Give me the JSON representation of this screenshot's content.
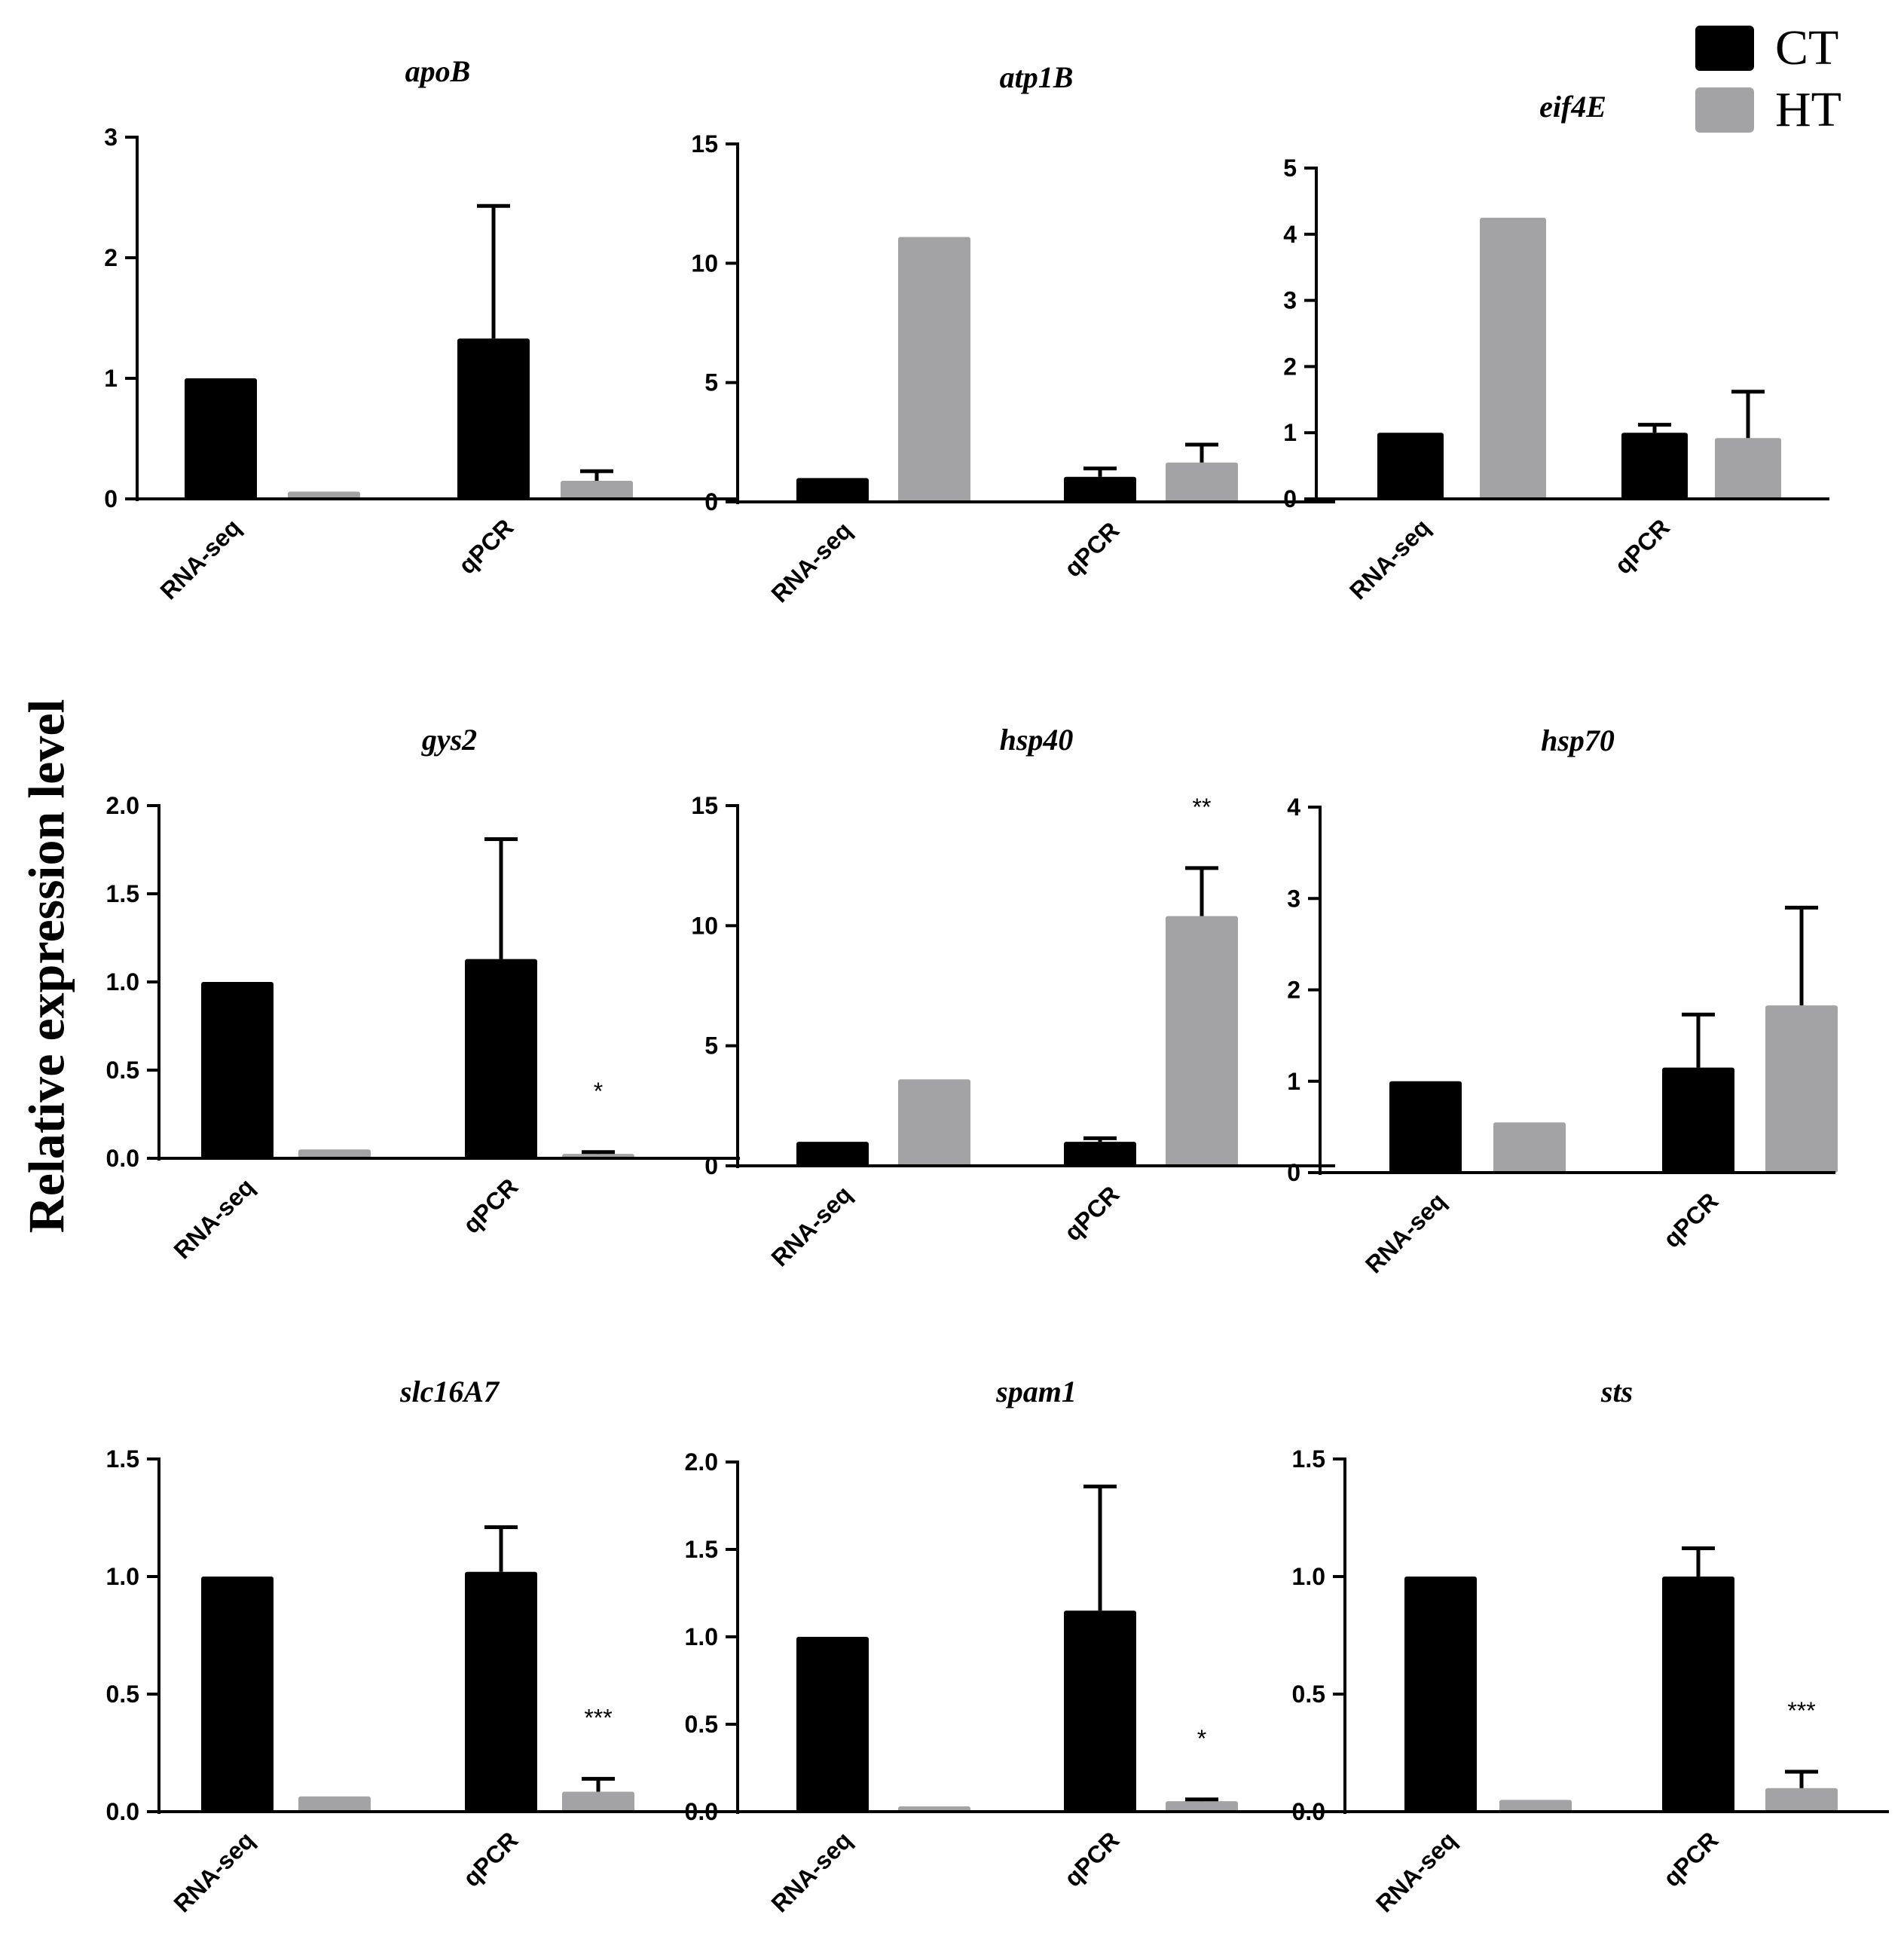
{
  "figure": {
    "ylabel": "Relative expression level",
    "colors": {
      "CT": "#000000",
      "HT": "#a3a3a6"
    }
  },
  "legend": [
    {
      "label": "CT",
      "color": "#000000"
    },
    {
      "label": "HT",
      "color": "#a3a3a6"
    }
  ],
  "chart_data": [
    {
      "type": "bar",
      "title": "apoB",
      "categories": [
        "RNA-seq",
        "qPCR"
      ],
      "series": [
        {
          "name": "CT",
          "values": [
            1.0,
            1.33
          ],
          "errors": [
            null,
            1.1
          ]
        },
        {
          "name": "HT",
          "values": [
            0.06,
            0.15
          ],
          "errors": [
            null,
            0.08
          ]
        }
      ],
      "ylim": [
        0,
        3
      ],
      "yticks": [
        "0",
        "1",
        "2",
        "3"
      ],
      "significance": [
        null,
        null
      ]
    },
    {
      "type": "bar",
      "title": "atp1B",
      "categories": [
        "RNA-seq",
        "qPCR"
      ],
      "series": [
        {
          "name": "CT",
          "values": [
            1.0,
            1.05
          ],
          "errors": [
            null,
            0.35
          ]
        },
        {
          "name": "HT",
          "values": [
            11.1,
            1.65
          ],
          "errors": [
            null,
            0.75
          ]
        }
      ],
      "ylim": [
        0,
        15
      ],
      "yticks": [
        "0",
        "5",
        "10",
        "15"
      ],
      "significance": [
        null,
        null
      ]
    },
    {
      "type": "bar",
      "title": "eif4E",
      "categories": [
        "RNA-seq",
        "qPCR"
      ],
      "series": [
        {
          "name": "CT",
          "values": [
            1.0,
            1.0
          ],
          "errors": [
            null,
            0.12
          ]
        },
        {
          "name": "HT",
          "values": [
            4.25,
            0.92
          ],
          "errors": [
            null,
            0.7
          ]
        }
      ],
      "ylim": [
        0,
        5
      ],
      "yticks": [
        "0",
        "1",
        "2",
        "3",
        "4",
        "5"
      ],
      "significance": [
        null,
        null
      ]
    },
    {
      "type": "bar",
      "title": "gys2",
      "categories": [
        "RNA-seq",
        "qPCR"
      ],
      "series": [
        {
          "name": "CT",
          "values": [
            1.0,
            1.13
          ],
          "errors": [
            null,
            0.68
          ]
        },
        {
          "name": "HT",
          "values": [
            0.05,
            0.025
          ],
          "errors": [
            null,
            0.01
          ]
        }
      ],
      "ylim": [
        0,
        2.0
      ],
      "yticks": [
        "0.0",
        "0.5",
        "1.0",
        "1.5",
        "2.0"
      ],
      "significance": [
        null,
        "*"
      ]
    },
    {
      "type": "bar",
      "title": "hsp40",
      "categories": [
        "RNA-seq",
        "qPCR"
      ],
      "series": [
        {
          "name": "CT",
          "values": [
            1.0,
            1.0
          ],
          "errors": [
            null,
            0.15
          ]
        },
        {
          "name": "HT",
          "values": [
            3.6,
            10.4
          ],
          "errors": [
            null,
            2.0
          ]
        }
      ],
      "ylim": [
        0,
        15
      ],
      "yticks": [
        "0",
        "5",
        "10",
        "15"
      ],
      "significance": [
        null,
        "**"
      ]
    },
    {
      "type": "bar",
      "title": "hsp70",
      "categories": [
        "RNA-seq",
        "qPCR"
      ],
      "series": [
        {
          "name": "CT",
          "values": [
            1.0,
            1.15
          ],
          "errors": [
            null,
            0.58
          ]
        },
        {
          "name": "HT",
          "values": [
            0.55,
            1.83
          ],
          "errors": [
            null,
            1.07
          ]
        }
      ],
      "ylim": [
        0,
        4
      ],
      "yticks": [
        "0",
        "1",
        "2",
        "3",
        "4"
      ],
      "significance": [
        null,
        null
      ]
    },
    {
      "type": "bar",
      "title": "slc16A7",
      "categories": [
        "RNA-seq",
        "qPCR"
      ],
      "series": [
        {
          "name": "CT",
          "values": [
            1.0,
            1.02
          ],
          "errors": [
            null,
            0.19
          ]
        },
        {
          "name": "HT",
          "values": [
            0.065,
            0.085
          ],
          "errors": [
            null,
            0.055
          ]
        }
      ],
      "ylim": [
        0,
        1.5
      ],
      "yticks": [
        "0.0",
        "0.5",
        "1.0",
        "1.5"
      ],
      "significance": [
        null,
        "***"
      ]
    },
    {
      "type": "bar",
      "title": "spam1",
      "categories": [
        "RNA-seq",
        "qPCR"
      ],
      "series": [
        {
          "name": "CT",
          "values": [
            1.0,
            1.15
          ],
          "errors": [
            null,
            0.71
          ]
        },
        {
          "name": "HT",
          "values": [
            0.03,
            0.06
          ],
          "errors": [
            null,
            0.01
          ]
        }
      ],
      "ylim": [
        0,
        2.0
      ],
      "yticks": [
        "0.0",
        "0.5",
        "1.0",
        "1.5",
        "2.0"
      ],
      "significance": [
        null,
        "*"
      ]
    },
    {
      "type": "bar",
      "title": "sts",
      "categories": [
        "RNA-seq",
        "qPCR"
      ],
      "series": [
        {
          "name": "CT",
          "values": [
            1.0,
            1.0
          ],
          "errors": [
            null,
            0.12
          ]
        },
        {
          "name": "HT",
          "values": [
            0.05,
            0.1
          ],
          "errors": [
            null,
            0.07
          ]
        }
      ],
      "ylim": [
        0,
        1.5
      ],
      "yticks": [
        "0.0",
        "0.5",
        "1.0",
        "1.5"
      ],
      "significance": [
        null,
        "***"
      ]
    }
  ]
}
